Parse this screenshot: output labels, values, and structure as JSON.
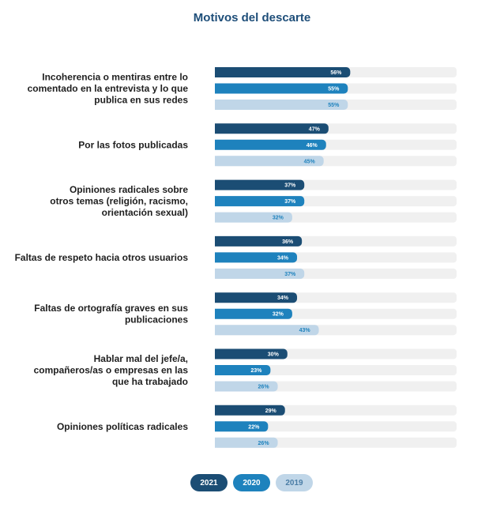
{
  "chart_data": {
    "type": "bar",
    "orientation": "horizontal",
    "title": "Motivos del descarte",
    "xlabel": "",
    "ylabel": "",
    "xlim": [
      0,
      100
    ],
    "grid": false,
    "legend_position": "bottom-center",
    "value_suffix": "%",
    "colors": {
      "2021": "#1b4d74",
      "2020": "#1e82bd",
      "2019": "#c0d6e8",
      "track": "#f0f0f0",
      "title": "#1e4e79",
      "label": "#1f1f1f"
    },
    "categories": [
      "Incoherencia o mentiras entre lo comentado en la entrevista y lo que publica en sus redes",
      "Por las fotos publicadas",
      "Opiniones radicales sobre otros temas (religión, racismo, orientación sexual)",
      "Faltas de respeto hacia otros usuarios",
      "Faltas de ortografía graves en sus publicaciones",
      "Hablar mal del jefe/a, compañeros/as o empresas en las que ha trabajado",
      "Opiniones políticas radicales"
    ],
    "category_lines": [
      [
        "Incoherencia o mentiras entre lo",
        "comentado en la entrevista y lo que",
        "publica en sus redes"
      ],
      [
        "Por las fotos publicadas"
      ],
      [
        "Opiniones radicales sobre",
        "otros temas (religión, racismo,",
        "orientación sexual)"
      ],
      [
        "Faltas de respeto hacia otros usuarios"
      ],
      [
        "Faltas de ortografía graves en sus",
        "publicaciones"
      ],
      [
        "Hablar mal del jefe/a,",
        "compañeros/as o empresas en las",
        "que ha trabajado"
      ],
      [
        "Opiniones políticas radicales"
      ]
    ],
    "series": [
      {
        "name": "2021",
        "values": [
          56,
          47,
          37,
          36,
          34,
          30,
          29
        ]
      },
      {
        "name": "2020",
        "values": [
          55,
          46,
          37,
          34,
          32,
          23,
          22
        ]
      },
      {
        "name": "2019",
        "values": [
          55,
          45,
          32,
          37,
          43,
          26,
          26
        ]
      }
    ]
  }
}
